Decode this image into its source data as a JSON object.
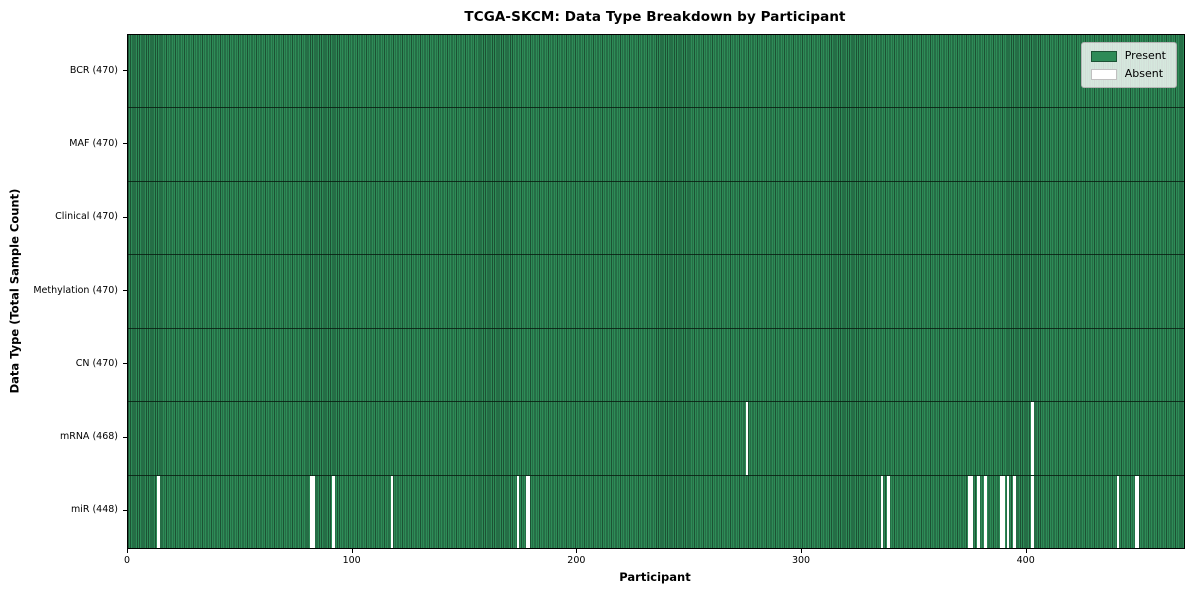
{
  "chart_data": {
    "type": "heatmap",
    "title": "TCGA-SKCM: Data Type Breakdown by Participant",
    "xlabel": "Participant",
    "ylabel": "Data Type (Total Sample Count)",
    "x_ticks": [
      0,
      100,
      200,
      300,
      400
    ],
    "x_range": [
      0,
      470
    ],
    "total_participants": 470,
    "grid": false,
    "legend_position": "upper right",
    "legend_entries": [
      "Present",
      "Absent"
    ],
    "colors": {
      "present": "#2e8b57",
      "present_edge": "#1c5234",
      "absent": "#ffffff",
      "absent_edge": "#c0c0c0",
      "row_divider": "#14331f",
      "spine": "#000000"
    },
    "rows": [
      {
        "data_type": "BCR",
        "label": "BCR (470)",
        "present_count": 470,
        "absent_participants": []
      },
      {
        "data_type": "MAF",
        "label": "MAF (470)",
        "present_count": 470,
        "absent_participants": []
      },
      {
        "data_type": "Clinical",
        "label": "Clinical (470)",
        "present_count": 470,
        "absent_participants": []
      },
      {
        "data_type": "Methylation",
        "label": "Methylation (470)",
        "present_count": 470,
        "absent_participants": []
      },
      {
        "data_type": "CN",
        "label": "CN (470)",
        "present_count": 470,
        "absent_participants": []
      },
      {
        "data_type": "mRNA",
        "label": "mRNA (468)",
        "present_count": 468,
        "absent_participants": [
          275,
          402
        ]
      },
      {
        "data_type": "miR",
        "label": "miR (448)",
        "present_count": 448,
        "absent_participants": [
          13,
          81,
          82,
          91,
          117,
          173,
          177,
          178,
          335,
          338,
          374,
          375,
          378,
          381,
          388,
          389,
          391,
          394,
          402,
          440,
          448,
          449
        ]
      }
    ]
  }
}
